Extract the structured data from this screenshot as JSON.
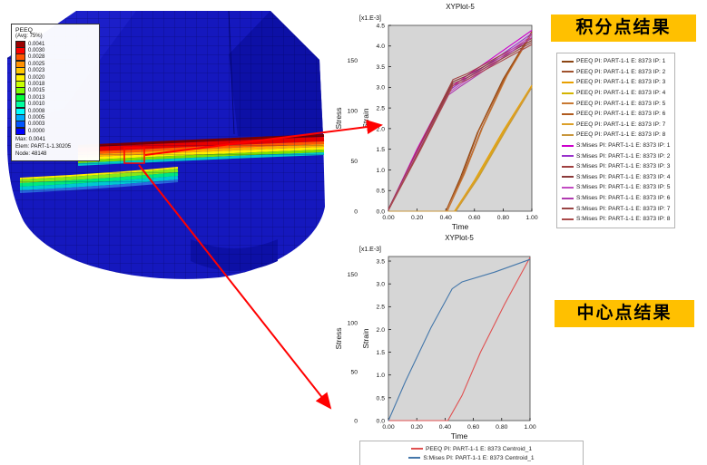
{
  "colors": {
    "banner_bg": "#ffc000",
    "arrow": "#ff0000",
    "plot_bg": "#d6d6d6"
  },
  "annotations": {
    "top_banner": "积分点结果",
    "bottom_banner": "中心点结果"
  },
  "model_viewport": {
    "contour_legend": {
      "title": "PEEQ",
      "subtitle": "(Avg: 75%)",
      "entries": [
        {
          "value": "0.0041",
          "color": "#9b0000"
        },
        {
          "value": "0.0030",
          "color": "#ff0000"
        },
        {
          "value": "0.0028",
          "color": "#ff5500"
        },
        {
          "value": "0.0025",
          "color": "#ff9100"
        },
        {
          "value": "0.0023",
          "color": "#ffc800"
        },
        {
          "value": "0.0020",
          "color": "#fff200"
        },
        {
          "value": "0.0018",
          "color": "#c8ff00"
        },
        {
          "value": "0.0015",
          "color": "#7dff00"
        },
        {
          "value": "0.0013",
          "color": "#00ff3c"
        },
        {
          "value": "0.0010",
          "color": "#00ffa0"
        },
        {
          "value": "0.0008",
          "color": "#00ffff"
        },
        {
          "value": "0.0005",
          "color": "#00aaff"
        },
        {
          "value": "0.0003",
          "color": "#0055ff"
        },
        {
          "value": "0.0000",
          "color": "#0000ff"
        }
      ],
      "max_label": "Max: 0.0041",
      "elem_label": "Elem: PART-1-1.30205",
      "node_label": "Node: 48148"
    }
  },
  "chart_data": [
    {
      "type": "line",
      "title": "XYPlot-5",
      "multiplier_label": "[x1.E-3]",
      "xlabel": "Time",
      "ylabel_left": "Stress",
      "ylabel_inner": "Strain",
      "xlim": [
        0,
        1
      ],
      "strain_lim": [
        0,
        4.5
      ],
      "stress_lim": [
        0,
        185
      ],
      "x_ticks": [
        "0.00",
        "0.20",
        "0.40",
        "0.60",
        "0.80",
        "1.00"
      ],
      "stress_ticks": [
        "150",
        "100",
        "50",
        "0"
      ],
      "strain_ticks": [
        "4.5",
        "4.0",
        "3.5",
        "3.0",
        "2.5",
        "2.0",
        "1.5",
        "1.0",
        "0.5",
        "0.0"
      ],
      "legend_position": "right",
      "series": [
        {
          "label": "PEEQ PI: PART-1-1 E: 8373 IP: 1",
          "axis": "strain",
          "color": "#8b4513",
          "x": [
            0,
            0.4,
            0.5,
            0.62,
            0.8,
            1.0
          ],
          "y": [
            0,
            0,
            0.8,
            1.9,
            3.2,
            4.35
          ]
        },
        {
          "label": "PEEQ PI: PART-1-1 E: 8373 IP: 2",
          "axis": "strain",
          "color": "#a0522d",
          "x": [
            0,
            0.41,
            0.52,
            0.65,
            0.82,
            1.0
          ],
          "y": [
            0,
            0,
            0.85,
            2.0,
            3.25,
            4.3
          ]
        },
        {
          "label": "PEEQ PI: PART-1-1 E: 8373 IP: 3",
          "axis": "strain",
          "color": "#e8a000",
          "x": [
            0,
            0.46,
            0.6,
            0.8,
            1.0
          ],
          "y": [
            0,
            0,
            0.75,
            1.95,
            3.05
          ]
        },
        {
          "label": "PEEQ PI: PART-1-1 E: 8373 IP: 4",
          "axis": "strain",
          "color": "#d4b400",
          "x": [
            0,
            0.47,
            0.62,
            0.82,
            1.0
          ],
          "y": [
            0,
            0,
            0.8,
            2.0,
            3.0
          ]
        },
        {
          "label": "PEEQ PI: PART-1-1 E: 8373 IP: 5",
          "axis": "strain",
          "color": "#c87832",
          "x": [
            0,
            0.41,
            0.53,
            0.66,
            0.83,
            1.0
          ],
          "y": [
            0,
            0,
            0.9,
            2.05,
            3.3,
            4.32
          ]
        },
        {
          "label": "PEEQ PI: PART-1-1 E: 8373 IP: 6",
          "axis": "strain",
          "color": "#b05a1e",
          "x": [
            0,
            0.4,
            0.51,
            0.63,
            0.81,
            1.0
          ],
          "y": [
            0,
            0,
            0.82,
            1.95,
            3.22,
            4.33
          ]
        },
        {
          "label": "PEEQ PI: PART-1-1 E: 8373 IP: 7",
          "axis": "strain",
          "color": "#dca028",
          "x": [
            0,
            0.465,
            0.61,
            0.81,
            1.0
          ],
          "y": [
            0,
            0,
            0.78,
            1.97,
            3.02
          ]
        },
        {
          "label": "PEEQ PI: PART-1-1 E: 8373 IP: 8",
          "axis": "strain",
          "color": "#c8963c",
          "x": [
            0,
            0.47,
            0.63,
            0.83,
            1.0
          ],
          "y": [
            0,
            0,
            0.82,
            2.02,
            3.0
          ]
        },
        {
          "label": "S:Mises PI: PART-1-1 E: 8373 IP: 1",
          "axis": "stress",
          "color": "#cc00cc",
          "x": [
            0,
            0.2,
            0.42,
            0.5,
            0.75,
            1.0
          ],
          "y": [
            2,
            62,
            122,
            130,
            155,
            180
          ]
        },
        {
          "label": "S:Mises PI: PART-1-1 E: 8373 IP: 2",
          "axis": "stress",
          "color": "#9932cc",
          "x": [
            0,
            0.2,
            0.42,
            0.5,
            0.75,
            1.0
          ],
          "y": [
            2,
            60,
            120,
            128,
            152,
            177
          ]
        },
        {
          "label": "S:Mises PI: PART-1-1 E: 8373 IP: 3",
          "axis": "stress",
          "color": "#a04040",
          "x": [
            0,
            0.22,
            0.45,
            0.55,
            1.0
          ],
          "y": [
            2,
            66,
            131,
            137,
            172
          ]
        },
        {
          "label": "S:Mises PI: PART-1-1 E: 8373 IP: 4",
          "axis": "stress",
          "color": "#8b3a3a",
          "x": [
            0,
            0.22,
            0.45,
            0.55,
            1.0
          ],
          "y": [
            2,
            64,
            129,
            135,
            170
          ]
        },
        {
          "label": "S:Mises PI: PART-1-1 E: 8373 IP: 5",
          "axis": "stress",
          "color": "#c24cc2",
          "x": [
            0,
            0.2,
            0.42,
            0.5,
            0.75,
            1.0
          ],
          "y": [
            1,
            58,
            118,
            126,
            150,
            175
          ]
        },
        {
          "label": "S:Mises PI: PART-1-1 E: 8373 IP: 6",
          "axis": "stress",
          "color": "#b03ab0",
          "x": [
            0,
            0.2,
            0.42,
            0.5,
            0.75,
            1.0
          ],
          "y": [
            1,
            56,
            116,
            124,
            148,
            173
          ]
        },
        {
          "label": "S:Mises PI: PART-1-1 E: 8373 IP: 7",
          "axis": "stress",
          "color": "#994444",
          "x": [
            0,
            0.22,
            0.45,
            0.55,
            1.0
          ],
          "y": [
            1,
            62,
            127,
            133,
            168
          ]
        },
        {
          "label": "S:Mises PI: PART-1-1 E: 8373 IP: 8",
          "axis": "stress",
          "color": "#aa4a4a",
          "x": [
            0,
            0.22,
            0.45,
            0.55,
            1.0
          ],
          "y": [
            1,
            60,
            125,
            131,
            166
          ]
        }
      ]
    },
    {
      "type": "line",
      "title": "XYPlot-5",
      "multiplier_label": "[x1.E-3]",
      "xlabel": "Time",
      "ylabel_left": "Stress",
      "ylabel_inner": "Strain",
      "xlim": [
        0,
        1
      ],
      "strain_lim": [
        0,
        3.6
      ],
      "stress_lim": [
        0,
        168
      ],
      "x_ticks": [
        "0.00",
        "0.20",
        "0.40",
        "0.60",
        "0.80",
        "1.00"
      ],
      "stress_ticks": [
        "150",
        "100",
        "50",
        "0"
      ],
      "strain_ticks": [
        "3.5",
        "3.0",
        "2.5",
        "2.0",
        "1.5",
        "1.0",
        "0.5",
        "0.0"
      ],
      "legend_position": "bottom",
      "series": [
        {
          "label": "PEEQ PI: PART-1-1 E: 8373 Centroid_1",
          "axis": "strain",
          "color": "#e05050",
          "x": [
            0,
            0.42,
            0.52,
            0.65,
            0.82,
            1.0
          ],
          "y": [
            0,
            0,
            0.55,
            1.5,
            2.55,
            3.58
          ]
        },
        {
          "label": "S:Mises PI: PART-1-1 E: 8373 Centroid_1",
          "axis": "stress",
          "color": "#4477aa",
          "x": [
            0,
            0.12,
            0.3,
            0.45,
            0.52,
            0.75,
            1.0
          ],
          "y": [
            0,
            40,
            95,
            135,
            142,
            152,
            165
          ]
        }
      ]
    }
  ]
}
